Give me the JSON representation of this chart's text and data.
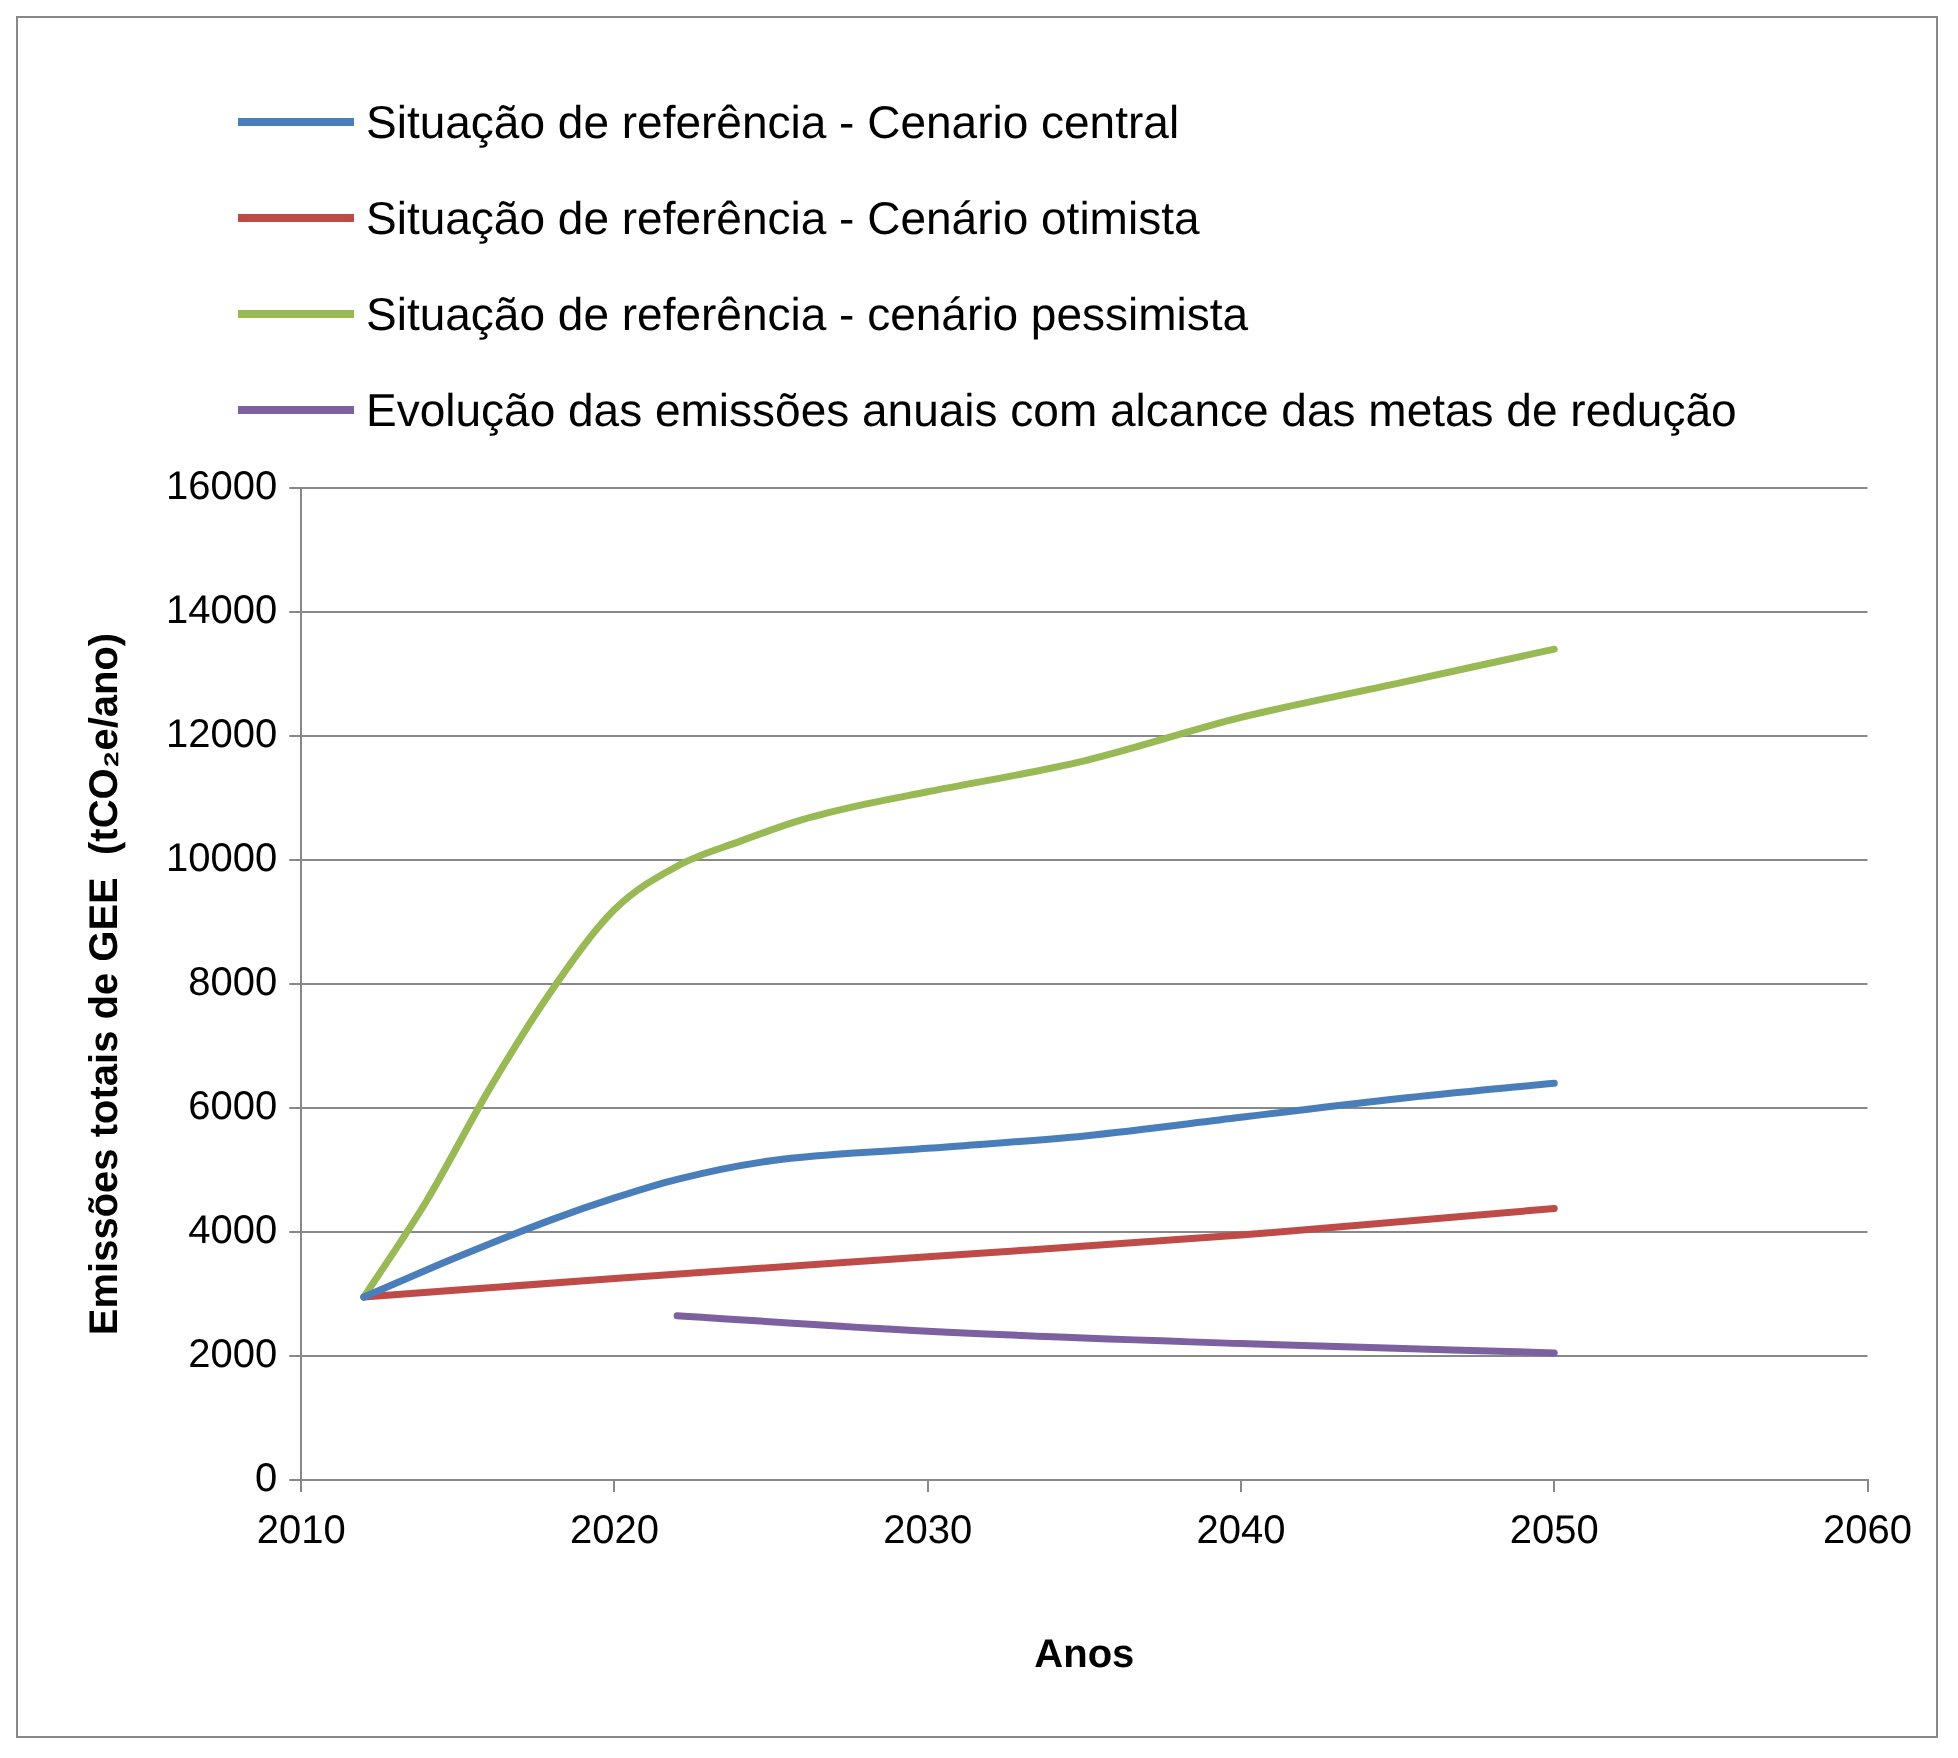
{
  "chart_data": {
    "type": "line",
    "xlabel": "Anos",
    "ylabel": "Emissões totais de GEE  (tCO₂e/ano)",
    "xlim": [
      2010,
      2060
    ],
    "xticks": [
      2010,
      2020,
      2030,
      2040,
      2050,
      2060
    ],
    "ylim": [
      0,
      16000
    ],
    "yticks": [
      0,
      2000,
      4000,
      6000,
      8000,
      10000,
      12000,
      14000,
      16000
    ],
    "grid": "y",
    "legend": "top",
    "marker": "none",
    "line_style": "solid",
    "series": [
      {
        "name": "Situação de referência - Cenario central",
        "color": "#4a7ebb",
        "x": [
          2012,
          2015,
          2018,
          2020,
          2022,
          2025,
          2030,
          2035,
          2040,
          2045,
          2050
        ],
        "values": [
          2950,
          3600,
          4200,
          4550,
          4850,
          5150,
          5350,
          5550,
          5850,
          6150,
          6400
        ]
      },
      {
        "name": "Situação de referência - Cenário otimista",
        "color": "#be4b48",
        "x": [
          2012,
          2020,
          2030,
          2040,
          2050
        ],
        "values": [
          2950,
          3250,
          3600,
          3950,
          4380
        ]
      },
      {
        "name": "Situação de referência - cenário pessimista",
        "color": "#98b954",
        "x": [
          2012,
          2014,
          2016,
          2018,
          2020,
          2022,
          2024,
          2026,
          2028,
          2030,
          2035,
          2040,
          2045,
          2050
        ],
        "values": [
          2950,
          4500,
          6300,
          7900,
          9200,
          9900,
          10300,
          10650,
          10900,
          11100,
          11600,
          12300,
          12850,
          13400
        ]
      },
      {
        "name": "Evolução das emissões anuais com alcance das metas de redução",
        "color": "#7d60a0",
        "x": [
          2022,
          2030,
          2040,
          2050
        ],
        "values": [
          2650,
          2400,
          2200,
          2050
        ]
      }
    ]
  }
}
